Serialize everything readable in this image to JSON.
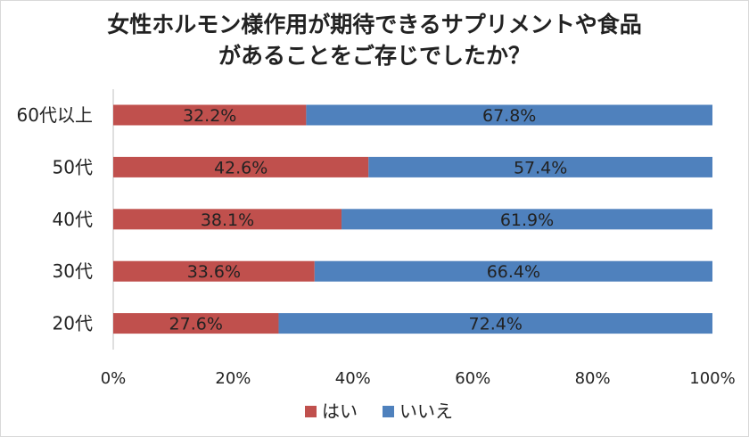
{
  "chart_data": {
    "type": "bar",
    "orientation": "horizontal",
    "stacked": true,
    "title_lines": [
      "女性ホルモン様作用が期待できるサプリメントや食品",
      "があることをご存じでしたか？"
    ],
    "categories": [
      "60代以上",
      "50代",
      "40代",
      "30代",
      "20代"
    ],
    "series": [
      {
        "name": "はい",
        "color": "#c0504d",
        "values": [
          32.2,
          42.6,
          38.1,
          33.6,
          27.6
        ],
        "labels": [
          "32.2%",
          "42.6%",
          "38.1%",
          "33.6%",
          "27.6%"
        ]
      },
      {
        "name": "いいえ",
        "color": "#4f81bd",
        "values": [
          67.8,
          57.4,
          61.9,
          66.4,
          72.4
        ],
        "labels": [
          "67.8%",
          "57.4%",
          "61.9%",
          "66.4%",
          "72.4%"
        ]
      }
    ],
    "xlim": [
      0,
      100
    ],
    "xticks": [
      0,
      20,
      40,
      60,
      80,
      100
    ],
    "xtick_labels": [
      "0%",
      "20%",
      "40%",
      "60%",
      "80%",
      "100%"
    ],
    "grid": false,
    "legend": "bottom"
  }
}
